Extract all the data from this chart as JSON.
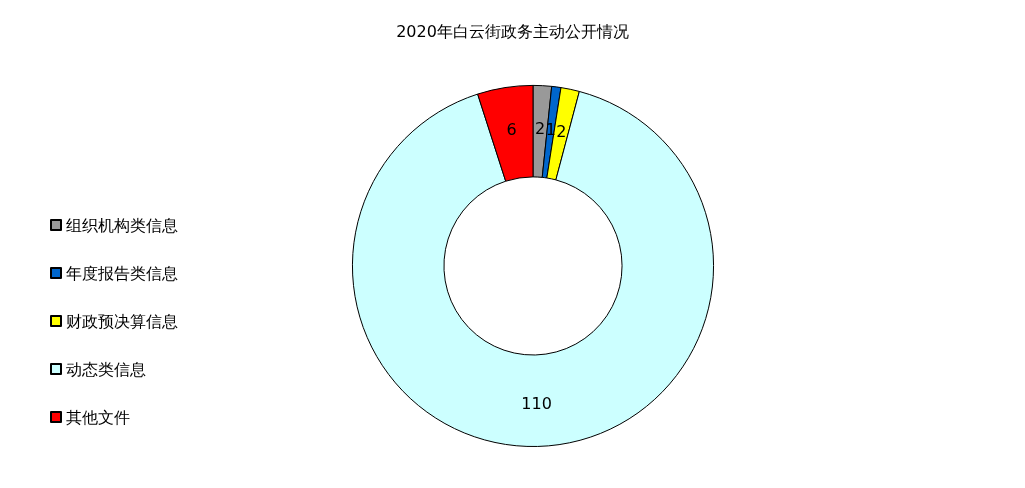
{
  "chart_data": {
    "type": "donut",
    "title": "2020年白云街政务主动公开情况",
    "categories": [
      "组织机构类信息",
      "年度报告类信息",
      "财政预决算信息",
      "动态类信息",
      "其他文件"
    ],
    "values": [
      2,
      1,
      2,
      110,
      6
    ],
    "colors": [
      "#999999",
      "#0066cc",
      "#ffff00",
      "#ccffff",
      "#ff0000"
    ],
    "data_labels": true,
    "legend": "left"
  }
}
